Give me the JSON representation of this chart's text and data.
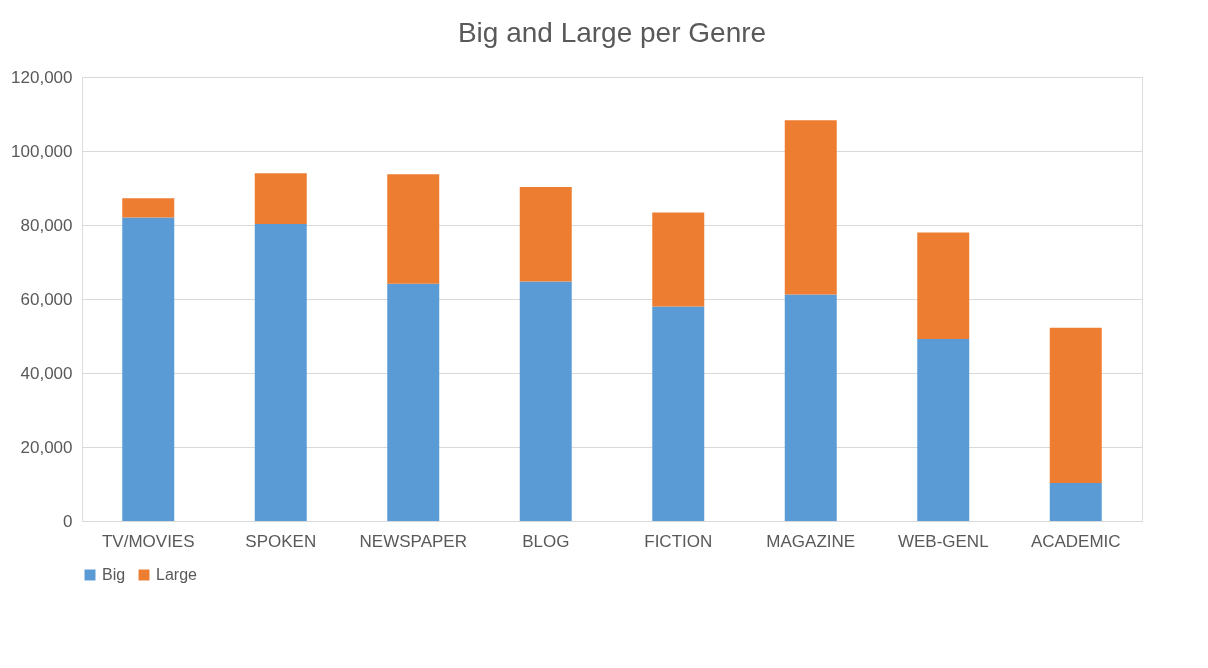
{
  "chart_data": {
    "type": "bar",
    "title": "Big and Large per Genre",
    "stacked": true,
    "categories": [
      "TV/MOVIES",
      "SPOKEN",
      "NEWSPAPER",
      "BLOG",
      "FICTION",
      "MAGAZINE",
      "WEB-GENL",
      "ACADEMIC"
    ],
    "series": [
      {
        "name": "Big",
        "color": "#5b9bd5",
        "values": [
          82000,
          80300,
          64100,
          64700,
          58000,
          61200,
          49200,
          10300
        ]
      },
      {
        "name": "Large",
        "color": "#ed7d31",
        "values": [
          5200,
          13700,
          29600,
          25600,
          25400,
          47100,
          28800,
          41900
        ]
      }
    ],
    "ylim": [
      0,
      120000
    ],
    "yticks": [
      {
        "value": 0,
        "label": "0"
      },
      {
        "value": 20000,
        "label": "20,000"
      },
      {
        "value": 40000,
        "label": "40,000"
      },
      {
        "value": 60000,
        "label": "60,000"
      },
      {
        "value": 80000,
        "label": "80,000"
      },
      {
        "value": 100000,
        "label": "100,000"
      },
      {
        "value": 120000,
        "label": "120,000"
      }
    ],
    "grid": "y",
    "legend": "bottom"
  }
}
